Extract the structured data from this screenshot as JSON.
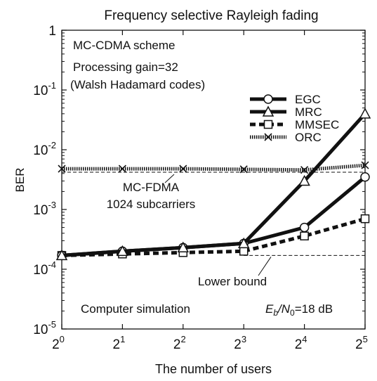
{
  "chart_data": {
    "type": "line",
    "title": "Frequency selective Rayleigh fading",
    "xlabel": "The number of users",
    "ylabel": "BER",
    "x_scale": "log2",
    "y_scale": "log10",
    "xlim": [
      1,
      32
    ],
    "ylim": [
      1e-05,
      1
    ],
    "x_ticks": [
      {
        "x": 1,
        "base": "2",
        "exp": "0"
      },
      {
        "x": 2,
        "base": "2",
        "exp": "1"
      },
      {
        "x": 4,
        "base": "2",
        "exp": "2"
      },
      {
        "x": 8,
        "base": "2",
        "exp": "3"
      },
      {
        "x": 16,
        "base": "2",
        "exp": "4"
      },
      {
        "x": 32,
        "base": "2",
        "exp": "5"
      }
    ],
    "y_ticks": [
      {
        "y": 1,
        "base": "1",
        "exp": ""
      },
      {
        "y": 0.1,
        "base": "10",
        "exp": "-1"
      },
      {
        "y": 0.01,
        "base": "10",
        "exp": "-2"
      },
      {
        "y": 0.001,
        "base": "10",
        "exp": "-3"
      },
      {
        "y": 0.0001,
        "base": "10",
        "exp": "-4"
      },
      {
        "y": 1e-05,
        "base": "10",
        "exp": "-5"
      }
    ],
    "x": [
      1,
      2,
      4,
      8,
      16,
      32
    ],
    "series": [
      {
        "name": "EGC",
        "marker": "circle",
        "line": "solid-thick",
        "values": [
          0.00017,
          0.0002,
          0.00023,
          0.00027,
          0.0005,
          0.0035
        ]
      },
      {
        "name": "MRC",
        "marker": "triangle",
        "line": "solid-thick",
        "values": [
          0.00017,
          0.0002,
          0.00023,
          0.00027,
          0.003,
          0.04
        ]
      },
      {
        "name": "MMSEC",
        "marker": "square",
        "line": "dashed-thick",
        "values": [
          0.00017,
          0.00018,
          0.00019,
          0.0002,
          0.00036,
          0.0007
        ]
      },
      {
        "name": "ORC",
        "marker": "cross",
        "line": "hatched",
        "values": [
          0.0048,
          0.0048,
          0.0048,
          0.0047,
          0.0046,
          0.0055
        ]
      }
    ],
    "reference_lines": [
      {
        "label_line1": "MC-FDMA",
        "label_line2": "1024 subcarriers",
        "y": 0.0042
      },
      {
        "label_line1": "Lower bound",
        "label_line2": "",
        "y": 0.00017
      }
    ],
    "annotations": {
      "scheme": "MC-CDMA scheme",
      "gain_line1": "Processing gain=32",
      "gain_line2": "(Walsh Hadamard codes)",
      "simulation": "Computer simulation",
      "eb_prefix": "E",
      "eb_sub": "b",
      "eb_mid": "/N",
      "eb_sub2": "0",
      "eb_suffix": "=18 dB"
    },
    "legend_position": "upper-right",
    "grid": false,
    "colors": {
      "line": "#111111",
      "background": "#ffffff"
    }
  }
}
